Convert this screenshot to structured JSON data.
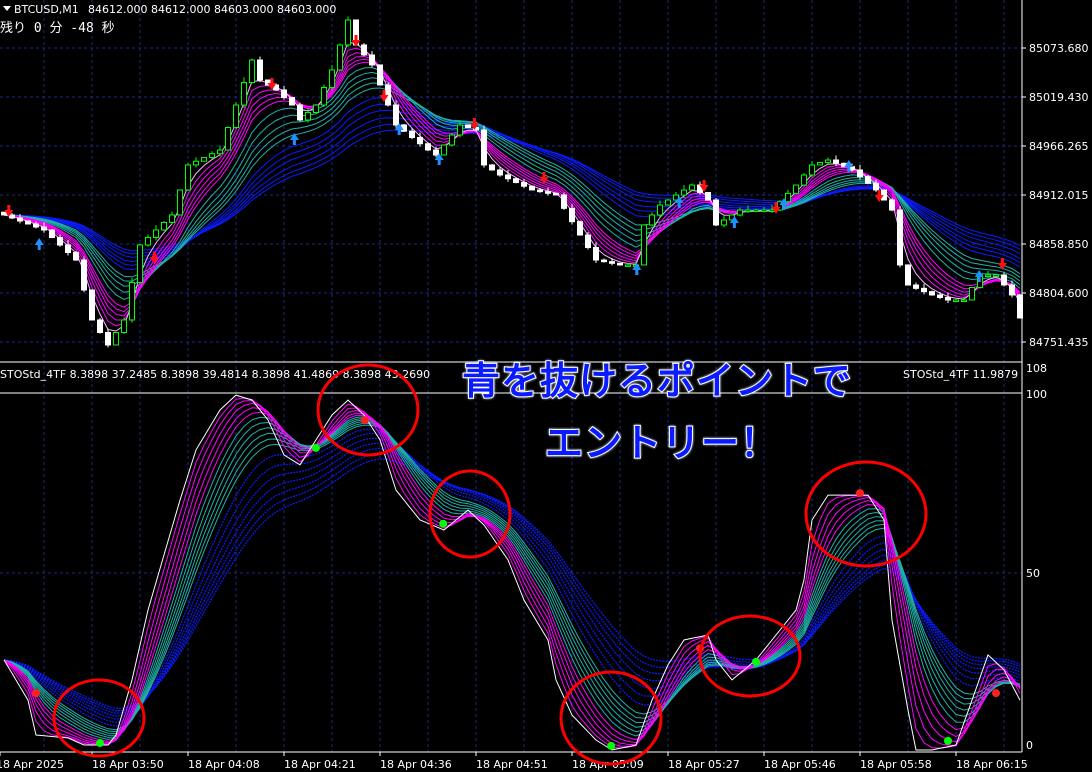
{
  "header": {
    "symbol": "BTCUSD,M1",
    "ohlc": "84612.000 84612.000 84603.000 84603.000",
    "countdown": "残り 0 分 -48 秒"
  },
  "indicator_label": "STOStd_4TF 8.3898 37.2485 8.3898 39.4814 8.3898 41.4869 8.3898 43.2690",
  "indicator_label_right": "STOStd_4TF 11.9879",
  "overlay": {
    "line1": "青を抜けるポイントで",
    "line2": "エントリー！"
  },
  "colors": {
    "bull": "#00ff00",
    "bear": "#ffffff",
    "fast": "#ff00ff",
    "mid": "#20b2aa",
    "slow": "#0a1cff",
    "grid": "#1c2a8a",
    "circle": "#ff0000",
    "buy_dot": "#00ff00",
    "sell_dot": "#ff2020"
  },
  "chart_data": [
    {
      "type": "candlestick",
      "title": "BTCUSD,M1",
      "yticks": [
        "85073.680",
        "85019.430",
        "84966.265",
        "84912.015",
        "84858.850",
        "84804.600",
        "84751.435"
      ],
      "xticks": [
        "18 Apr 2025",
        "18 Apr 03:50",
        "18 Apr 04:08",
        "18 Apr 04:21",
        "18 Apr 04:36",
        "18 Apr 04:51",
        "18 Apr 05:09",
        "18 Apr 05:27",
        "18 Apr 05:46",
        "18 Apr 05:58",
        "18 Apr 06:15"
      ],
      "ylim": [
        84740,
        85115
      ],
      "grid": true,
      "close_path": [
        [
          0,
          84890.7
        ],
        [
          5,
          84874.2
        ],
        [
          9,
          84841.3
        ],
        [
          11,
          84775.6
        ],
        [
          13,
          84748.2
        ],
        [
          15,
          84775.6
        ],
        [
          17,
          84857.8
        ],
        [
          21,
          84890.7
        ],
        [
          23,
          84945.5
        ],
        [
          27,
          84961.9
        ],
        [
          29,
          85011.2
        ],
        [
          31,
          85060.5
        ],
        [
          32,
          85038.6
        ],
        [
          34,
          85027.7
        ],
        [
          36,
          85011.2
        ],
        [
          37,
          84994.8
        ],
        [
          39,
          85011.2
        ],
        [
          41,
          85049.6
        ],
        [
          43,
          85104.4
        ],
        [
          44,
          85077.0
        ],
        [
          46,
          85055.1
        ],
        [
          48,
          85011.2
        ],
        [
          49,
          84989.3
        ],
        [
          53,
          84961.9
        ],
        [
          54,
          84956.4
        ],
        [
          57,
          84989.3
        ],
        [
          59,
          84983.8
        ],
        [
          60,
          84945.5
        ],
        [
          62,
          84934.5
        ],
        [
          66,
          84918.1
        ],
        [
          69,
          84912.6
        ],
        [
          72,
          84868.7
        ],
        [
          74,
          84841.3
        ],
        [
          77,
          84835.9
        ],
        [
          79,
          84835.9
        ],
        [
          80,
          84879.7
        ],
        [
          82,
          84901.6
        ],
        [
          86,
          84923.5
        ],
        [
          88,
          84907.1
        ],
        [
          89,
          84879.7
        ],
        [
          92,
          84896.1
        ],
        [
          96,
          84896.1
        ],
        [
          99,
          84923.5
        ],
        [
          101,
          84945.5
        ],
        [
          103,
          84950.9
        ],
        [
          106,
          84940.0
        ],
        [
          109,
          84918.1
        ],
        [
          111,
          84896.1
        ],
        [
          112,
          84835.9
        ],
        [
          113,
          84813.9
        ],
        [
          116,
          84803.0
        ],
        [
          118,
          84797.5
        ],
        [
          120,
          84797.5
        ],
        [
          122,
          84824.9
        ],
        [
          124,
          84824.9
        ],
        [
          126,
          84803.0
        ],
        [
          127,
          84777.8
        ]
      ],
      "sell_arrows": [
        [
          0.6,
          84890.7
        ],
        [
          18.8,
          84839.1
        ],
        [
          33.5,
          85029.8
        ],
        [
          44,
          85077.0
        ],
        [
          47.5,
          85016.7
        ],
        [
          58.8,
          84986.0
        ],
        [
          67.5,
          84926.8
        ],
        [
          87.5,
          84918.0
        ],
        [
          96.5,
          84894.0
        ],
        [
          109.4,
          84907.1
        ],
        [
          124.8,
          84832.6
        ]
      ],
      "buy_arrows": [
        [
          4.4,
          84863.3
        ],
        [
          36.3,
          84978.3
        ],
        [
          49.4,
          84989.3
        ],
        [
          54.4,
          84956.4
        ],
        [
          79.1,
          84835.9
        ],
        [
          84.4,
          84909.3
        ],
        [
          91.3,
          84887.4
        ],
        [
          97.5,
          84907.1
        ],
        [
          105.6,
          84948.7
        ],
        [
          121.9,
          84828.2
        ]
      ]
    },
    {
      "type": "line",
      "title": "STOStd_4TF",
      "yticks": [
        "108",
        "100",
        "50",
        "0"
      ],
      "ylim": [
        0,
        100
      ],
      "main_path": [
        [
          0,
          25.3
        ],
        [
          2.5,
          14.0
        ],
        [
          4.4,
          4.2
        ],
        [
          7.5,
          3.4
        ],
        [
          10,
          1.4
        ],
        [
          12.5,
          1.4
        ],
        [
          14.4,
          4.2
        ],
        [
          16.3,
          19.7
        ],
        [
          18.1,
          39.3
        ],
        [
          20,
          54.8
        ],
        [
          21.9,
          70.2
        ],
        [
          24.4,
          84.3
        ],
        [
          26.9,
          95.5
        ],
        [
          29.4,
          99.7
        ],
        [
          31.3,
          98.3
        ],
        [
          33.1,
          92.7
        ],
        [
          35,
          82.9
        ],
        [
          36.9,
          80.1
        ],
        [
          38.8,
          87.1
        ],
        [
          41.3,
          94.1
        ],
        [
          43.1,
          98.3
        ],
        [
          45,
          94.1
        ],
        [
          46.9,
          87.1
        ],
        [
          49.4,
          73.0
        ],
        [
          51.9,
          64.6
        ],
        [
          55,
          61.8
        ],
        [
          57.5,
          67.4
        ],
        [
          60,
          63.2
        ],
        [
          62.5,
          53.4
        ],
        [
          65,
          42.1
        ],
        [
          67.5,
          30.9
        ],
        [
          69.4,
          19.7
        ],
        [
          71.3,
          9.8
        ],
        [
          73.8,
          2.8
        ],
        [
          76.3,
          0
        ],
        [
          78.8,
          1.4
        ],
        [
          80.6,
          14.0
        ],
        [
          82.5,
          23.9
        ],
        [
          85,
          30.9
        ],
        [
          87.5,
          32.3
        ],
        [
          89.4,
          25.3
        ],
        [
          91.3,
          19.7
        ],
        [
          93.8,
          25.3
        ],
        [
          96.3,
          30.9
        ],
        [
          98.8,
          39.3
        ],
        [
          100,
          47.8
        ],
        [
          101.3,
          64.6
        ],
        [
          102.5,
          71.6
        ],
        [
          105,
          71.6
        ],
        [
          107.5,
          71.6
        ],
        [
          110,
          64.6
        ],
        [
          111.3,
          36.5
        ],
        [
          112.5,
          11.2
        ],
        [
          113.8,
          0
        ],
        [
          116.3,
          0
        ],
        [
          118.8,
          1.4
        ],
        [
          121.3,
          14.0
        ],
        [
          123.1,
          26.7
        ],
        [
          125,
          22.5
        ],
        [
          126.9,
          14.0
        ],
        [
          127.75,
          1.4
        ]
      ],
      "buy_dots": [
        [
          12.5,
          1.4
        ],
        [
          39.5,
          84.3
        ],
        [
          55.4,
          63
        ],
        [
          76.4,
          0.6
        ],
        [
          94.5,
          24.2
        ],
        [
          118.5,
          2
        ]
      ],
      "sell_dots": [
        [
          4.5,
          15.4
        ],
        [
          45.6,
          92.1
        ],
        [
          87.5,
          28
        ],
        [
          107.5,
          71.6
        ],
        [
          124.5,
          15.4
        ]
      ]
    }
  ]
}
